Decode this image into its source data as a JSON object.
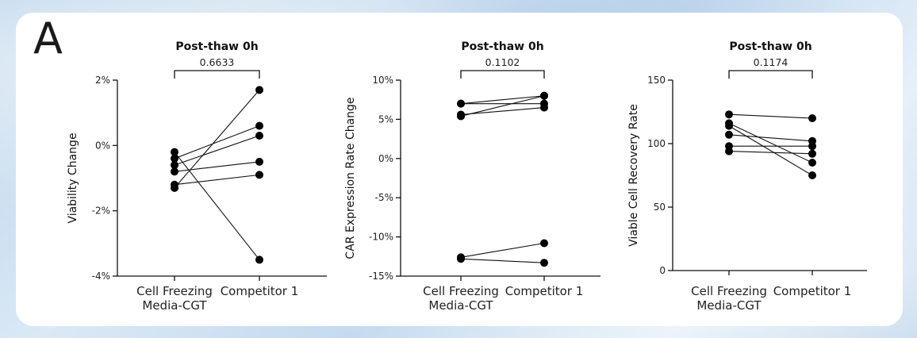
{
  "panel_label": "A",
  "chart_data": [
    {
      "type": "scatter",
      "title": "Post-thaw 0h",
      "ylabel": "Viability Change",
      "xlabel": "",
      "categories": [
        "Cell Freezing\nMedia-CGT",
        "Competitor 1"
      ],
      "yticks": [
        -4,
        -2,
        0,
        2
      ],
      "ytick_labels": [
        "-4%",
        "-2%",
        "0%",
        "2%"
      ],
      "ylim": [
        -4,
        2
      ],
      "p_value": "0.6633",
      "pairs": [
        [
          -0.2,
          -3.5
        ],
        [
          -0.4,
          0.6
        ],
        [
          -0.6,
          0.3
        ],
        [
          -0.8,
          -0.5
        ],
        [
          -1.2,
          -0.9
        ],
        [
          -1.3,
          1.7
        ]
      ]
    },
    {
      "type": "scatter",
      "title": "Post-thaw 0h",
      "ylabel": "CAR Expression Rate Change",
      "xlabel": "",
      "categories": [
        "Cell Freezing\nMedia-CGT",
        "Competitor 1"
      ],
      "yticks": [
        -15,
        -10,
        -5,
        0,
        5,
        10
      ],
      "ytick_labels": [
        "-15%",
        "-10%",
        "-5%",
        "0%",
        "5%",
        "10%"
      ],
      "ylim": [
        -15,
        10
      ],
      "p_value": "0.1102",
      "pairs": [
        [
          7.0,
          7.0
        ],
        [
          7.0,
          8.0
        ],
        [
          5.6,
          6.5
        ],
        [
          5.4,
          8.0
        ],
        [
          -12.6,
          -10.8
        ],
        [
          -12.8,
          -13.3
        ]
      ]
    },
    {
      "type": "scatter",
      "title": "Post-thaw 0h",
      "ylabel": "Viable Cell Recovery Rate",
      "xlabel": "",
      "categories": [
        "Cell Freezing\nMedia-CGT",
        "Competitor 1"
      ],
      "yticks": [
        0,
        50,
        100,
        150
      ],
      "ytick_labels": [
        "0",
        "50",
        "100",
        "150"
      ],
      "ylim": [
        0,
        150
      ],
      "p_value": "0.1174",
      "pairs": [
        [
          123,
          120
        ],
        [
          116,
          85
        ],
        [
          114,
          75
        ],
        [
          107,
          102
        ],
        [
          98,
          98
        ],
        [
          94,
          92
        ]
      ]
    }
  ]
}
